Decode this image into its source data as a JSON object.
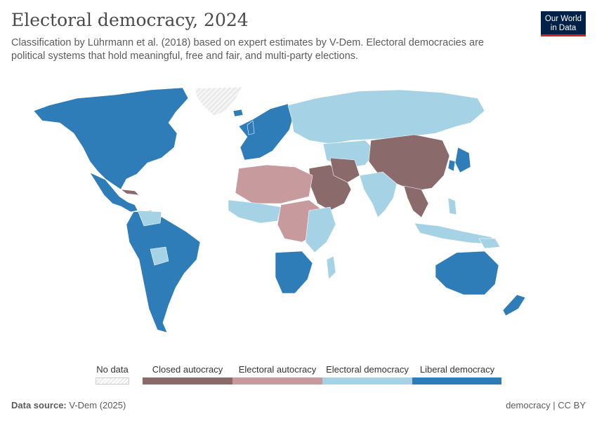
{
  "title": "Electoral democracy, 2024",
  "subtitle": "Classification by Lührmann et al. (2018) based on expert estimates by V-Dem. Electoral democracies are political systems that hold meaningful, free and fair, and multi-party elections.",
  "logo": {
    "line1": "Our World",
    "line2": "in Data"
  },
  "legend": {
    "no_data": "No data",
    "categories": [
      {
        "label": "Closed autocracy",
        "color": "#8a6a6b"
      },
      {
        "label": "Electoral autocracy",
        "color": "#c79a9d"
      },
      {
        "label": "Electoral democracy",
        "color": "#a5d3e5"
      },
      {
        "label": "Liberal democracy",
        "color": "#2e7cb8"
      }
    ]
  },
  "footer": {
    "source_label": "Data source:",
    "source_value": "V-Dem (2025)",
    "right": "democracy | CC BY"
  },
  "colors": {
    "closed_autocracy": "#8a6a6b",
    "electoral_autocracy": "#c79a9d",
    "electoral_democracy": "#a5d3e5",
    "liberal_democracy": "#2e7cb8",
    "no_data": "#e6e6e6"
  }
}
